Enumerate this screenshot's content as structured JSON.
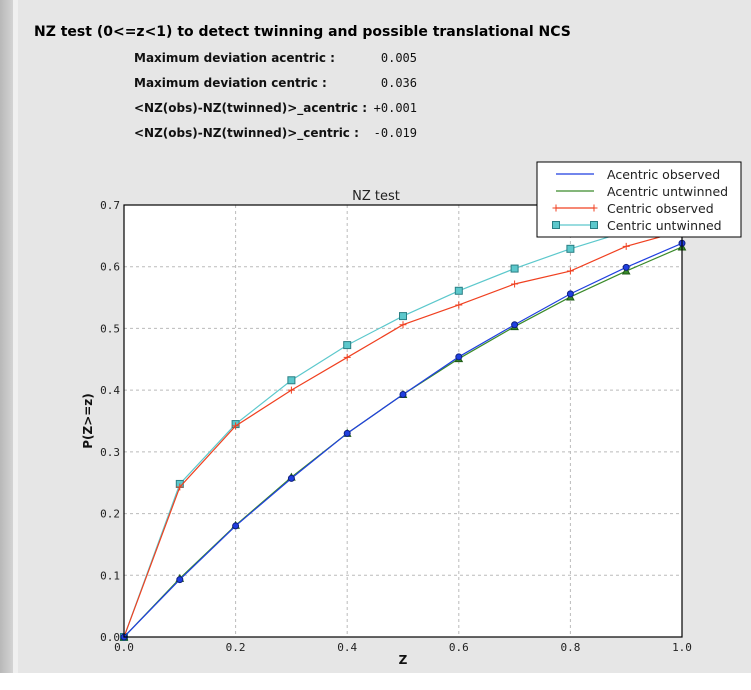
{
  "header": {
    "title": "NZ test (0<=z<1) to detect twinning and possible translational NCS"
  },
  "stats": [
    {
      "label": "Maximum deviation acentric :",
      "value": "0.005"
    },
    {
      "label": "Maximum deviation centric :",
      "value": "0.036"
    },
    {
      "label": "<NZ(obs)-NZ(twinned)>_acentric :",
      "value": "+0.001"
    },
    {
      "label": "<NZ(obs)-NZ(twinned)>_centric :",
      "value": "-0.019"
    }
  ],
  "chart_data": {
    "type": "line",
    "title": "NZ test",
    "xlabel": "Z",
    "ylabel": "P(Z>=z)",
    "xlim": [
      0,
      1.0
    ],
    "ylim": [
      0,
      0.7
    ],
    "grid": true,
    "legend_position": "top-right",
    "xticks": [
      "0.0",
      "0.2",
      "0.4",
      "0.6",
      "0.8",
      "1.0"
    ],
    "yticks": [
      "0.0",
      "0.1",
      "0.2",
      "0.3",
      "0.4",
      "0.5",
      "0.6",
      "0.7"
    ],
    "x": [
      0,
      0.1,
      0.2,
      0.3,
      0.4,
      0.5,
      0.6,
      0.7,
      0.8,
      0.9,
      1.0
    ],
    "series": [
      {
        "name": "Acentric observed",
        "color": "#1f3fe0",
        "marker": "circle",
        "values": [
          0,
          0.093,
          0.18,
          0.257,
          0.33,
          0.393,
          0.454,
          0.506,
          0.556,
          0.599,
          0.638
        ]
      },
      {
        "name": "Acentric untwinned",
        "color": "#3a8a2a",
        "marker": "triangle",
        "values": [
          0,
          0.095,
          0.181,
          0.259,
          0.33,
          0.393,
          0.451,
          0.503,
          0.551,
          0.593,
          0.632
        ]
      },
      {
        "name": "Centric observed",
        "color": "#f04020",
        "marker": "plus",
        "values": [
          0,
          0.243,
          0.342,
          0.4,
          0.453,
          0.506,
          0.538,
          0.572,
          0.593,
          0.633,
          0.658
        ]
      },
      {
        "name": "Centric untwinned",
        "color": "#5cc8cc",
        "marker": "square",
        "values": [
          0,
          0.248,
          0.345,
          0.416,
          0.473,
          0.52,
          0.561,
          0.597,
          0.629,
          0.657,
          0.683
        ]
      }
    ]
  }
}
